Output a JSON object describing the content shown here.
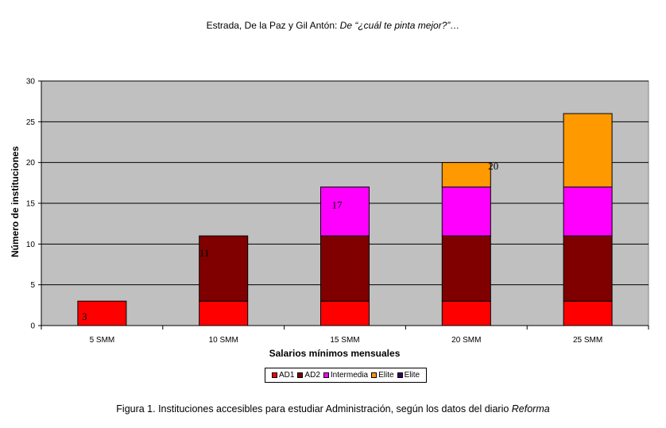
{
  "header": {
    "authors": "Estrada, De la Paz y Gil Antón: ",
    "title_italic": "De “¿cuál te pinta mejor?”…"
  },
  "caption": {
    "text": "Figura 1. Instituciones accesibles para estudiar Administración, según los datos del diario ",
    "italic": "Reforma"
  },
  "chart_data": {
    "type": "bar",
    "stacked": true,
    "title": "",
    "xlabel": "Salarios mínimos mensuales",
    "ylabel": "Número de instituciones",
    "categories": [
      "5 SMM",
      "10 SMM",
      "15 SMM",
      "20 SMM",
      "25 SMM"
    ],
    "ylim": [
      0,
      30
    ],
    "yticks": [
      0,
      5,
      10,
      15,
      20,
      25,
      30
    ],
    "grid": true,
    "plot_background": "#c0c0c0",
    "legend_position": "bottom",
    "series": [
      {
        "name": "AD1",
        "color": "#ff0000",
        "values": [
          3,
          3,
          3,
          3,
          3
        ]
      },
      {
        "name": "AD2",
        "color": "#800000",
        "values": [
          0,
          8,
          8,
          8,
          8
        ]
      },
      {
        "name": "Intermedia",
        "color": "#ff00ff",
        "values": [
          0,
          0,
          6,
          6,
          6
        ]
      },
      {
        "name": "Elite",
        "color": "#ff9900",
        "values": [
          0,
          0,
          0,
          3,
          9
        ]
      },
      {
        "name": "Elite",
        "color": "#330066",
        "values": [
          0,
          0,
          0,
          0,
          0
        ]
      }
    ],
    "annotations": [
      {
        "text": "3",
        "category": "5 SMM"
      },
      {
        "text": "11",
        "category": "10 SMM"
      },
      {
        "text": "17",
        "category": "15 SMM"
      },
      {
        "text": "20",
        "category": "20 SMM"
      }
    ]
  }
}
